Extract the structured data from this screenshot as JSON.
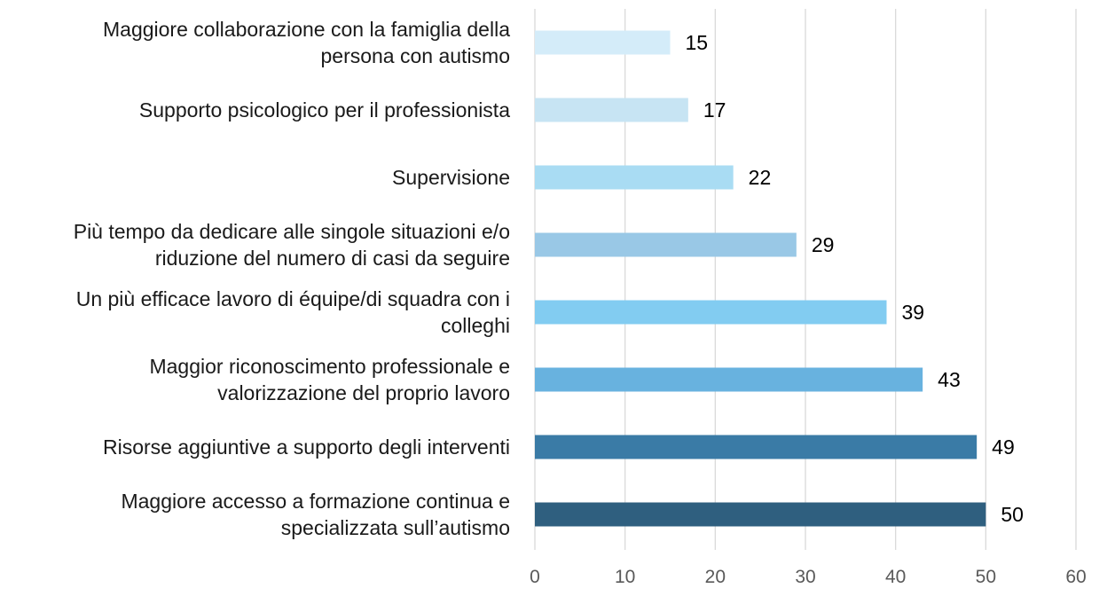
{
  "chart_data": {
    "type": "bar",
    "orientation": "horizontal",
    "categories": [
      [
        "Maggiore collaborazione con la famiglia della",
        "persona con autismo"
      ],
      [
        "Supporto psicologico per il professionista"
      ],
      [
        "Supervisione"
      ],
      [
        "Più tempo da dedicare alle singole situazioni e/o",
        "riduzione del numero di casi da seguire"
      ],
      [
        "Un più efficace lavoro di équipe/di squadra con i",
        "colleghi"
      ],
      [
        "Maggior riconoscimento professionale e",
        "valorizzazione del proprio lavoro"
      ],
      [
        "Risorse aggiuntive a supporto degli interventi"
      ],
      [
        "Maggiore accesso a formazione continua e",
        "specializzata sull’autismo"
      ]
    ],
    "values": [
      15,
      17,
      22,
      29,
      39,
      43,
      49,
      50
    ],
    "bar_colors": [
      "#d4ecf9",
      "#c7e4f3",
      "#a9dcf3",
      "#99c8e6",
      "#82ccf1",
      "#68b2df",
      "#3a7ba6",
      "#2f5f7f"
    ],
    "xlim": [
      0,
      60
    ],
    "xticks": [
      0,
      10,
      20,
      30,
      40,
      50,
      60
    ],
    "grid": "vertical",
    "legend": "none",
    "title": "",
    "xlabel": "",
    "ylabel": ""
  }
}
